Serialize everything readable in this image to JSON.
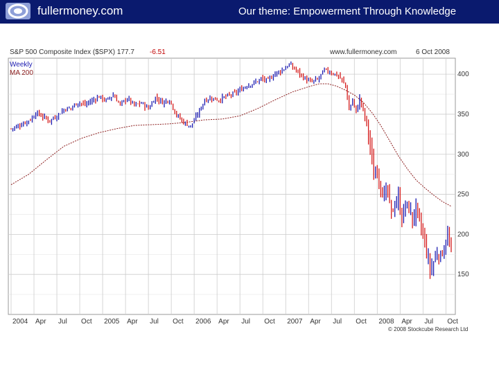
{
  "header": {
    "logo_icon": "swirl-logo-icon",
    "brand": "fullermoney.com",
    "theme": "Our theme: Empowerment Through Knowledge"
  },
  "chart_data": {
    "type": "candlestick",
    "title_left": "S&P 500 Composite Index ($SPX) 177.7",
    "change": "-6.51",
    "site": "www.fullermoney.com",
    "date": "6 Oct 2008",
    "legend": [
      "Weekly",
      "MA 200"
    ],
    "copyright": "© 2008 Stockcube Research Ltd",
    "xlabel": "",
    "ylabel": "",
    "ylim": [
      100,
      420
    ],
    "y_ticks": [
      150,
      200,
      250,
      300,
      350,
      400
    ],
    "x_ticks": [
      "2004",
      "Apr",
      "Jul",
      "Oct",
      "2005",
      "Apr",
      "Jul",
      "Oct",
      "2006",
      "Apr",
      "Jul",
      "Oct",
      "2007",
      "Apr",
      "Jul",
      "Oct",
      "2008",
      "Apr",
      "Jul",
      "Oct"
    ],
    "x_range_weeks": [
      0,
      250
    ],
    "close_series": [
      [
        0,
        332
      ],
      [
        4,
        335
      ],
      [
        8,
        340
      ],
      [
        12,
        345
      ],
      [
        14,
        352
      ],
      [
        18,
        347
      ],
      [
        22,
        342
      ],
      [
        26,
        348
      ],
      [
        30,
        356
      ],
      [
        34,
        358
      ],
      [
        38,
        365
      ],
      [
        42,
        362
      ],
      [
        46,
        367
      ],
      [
        50,
        372
      ],
      [
        54,
        367
      ],
      [
        58,
        374
      ],
      [
        62,
        362
      ],
      [
        66,
        370
      ],
      [
        70,
        361
      ],
      [
        74,
        364
      ],
      [
        78,
        357
      ],
      [
        82,
        371
      ],
      [
        86,
        365
      ],
      [
        90,
        368
      ],
      [
        94,
        349
      ],
      [
        98,
        340
      ],
      [
        102,
        335
      ],
      [
        106,
        350
      ],
      [
        110,
        368
      ],
      [
        114,
        370
      ],
      [
        118,
        368
      ],
      [
        122,
        372
      ],
      [
        126,
        375
      ],
      [
        130,
        380
      ],
      [
        134,
        386
      ],
      [
        138,
        389
      ],
      [
        142,
        394
      ],
      [
        146,
        392
      ],
      [
        150,
        401
      ],
      [
        154,
        405
      ],
      [
        158,
        412
      ],
      [
        162,
        405
      ],
      [
        166,
        396
      ],
      [
        170,
        390
      ],
      [
        174,
        393
      ],
      [
        178,
        405
      ],
      [
        182,
        402
      ],
      [
        186,
        398
      ],
      [
        190,
        386
      ],
      [
        192,
        355
      ],
      [
        194,
        368
      ],
      [
        196,
        352
      ],
      [
        198,
        370
      ],
      [
        200,
        355
      ],
      [
        202,
        338
      ],
      [
        204,
        310
      ],
      [
        206,
        272
      ],
      [
        208,
        284
      ],
      [
        210,
        258
      ],
      [
        212,
        248
      ],
      [
        214,
        252
      ],
      [
        216,
        225
      ],
      [
        218,
        238
      ],
      [
        220,
        245
      ],
      [
        222,
        220
      ],
      [
        224,
        237
      ],
      [
        226,
        232
      ],
      [
        228,
        218
      ],
      [
        230,
        233
      ],
      [
        232,
        213
      ],
      [
        234,
        200
      ],
      [
        236,
        178
      ],
      [
        238,
        155
      ],
      [
        240,
        165
      ],
      [
        242,
        178
      ],
      [
        244,
        172
      ],
      [
        246,
        185
      ],
      [
        248,
        197
      ],
      [
        250,
        177.7
      ]
    ],
    "ma200_series": [
      [
        0,
        262
      ],
      [
        10,
        275
      ],
      [
        20,
        293
      ],
      [
        30,
        310
      ],
      [
        40,
        320
      ],
      [
        50,
        327
      ],
      [
        60,
        332
      ],
      [
        70,
        336
      ],
      [
        80,
        337
      ],
      [
        90,
        338
      ],
      [
        100,
        340
      ],
      [
        110,
        343
      ],
      [
        120,
        344
      ],
      [
        130,
        348
      ],
      [
        140,
        357
      ],
      [
        150,
        368
      ],
      [
        160,
        378
      ],
      [
        170,
        385
      ],
      [
        175,
        388
      ],
      [
        180,
        388
      ],
      [
        185,
        385
      ],
      [
        190,
        380
      ],
      [
        195,
        374
      ],
      [
        200,
        365
      ],
      [
        205,
        352
      ],
      [
        210,
        336
      ],
      [
        215,
        317
      ],
      [
        220,
        298
      ],
      [
        225,
        282
      ],
      [
        230,
        268
      ],
      [
        235,
        258
      ],
      [
        240,
        249
      ],
      [
        245,
        241
      ],
      [
        250,
        235
      ]
    ],
    "colors": {
      "up": "#1a1ab0",
      "down": "#d41a1a",
      "ma": "#8b1c1c",
      "grid": "#cccccc"
    }
  }
}
